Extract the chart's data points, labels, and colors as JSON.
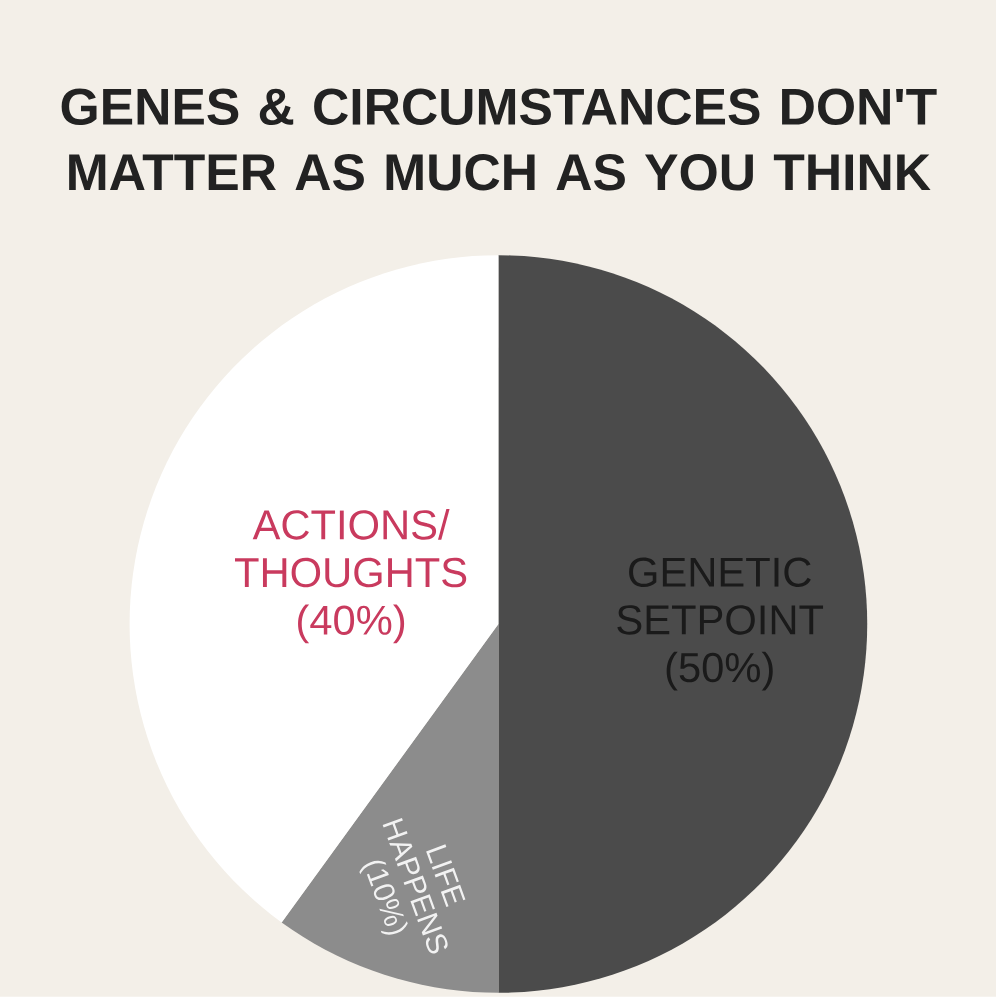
{
  "chart_data": {
    "type": "pie",
    "title": "GENES & CIRCUMSTANCES DON'T MATTER AS MUCH AS YOU THINK",
    "categories": [
      "GENETIC SETPOINT",
      "LIFE HAPPENS",
      "ACTIONS/ THOUGHTS"
    ],
    "values": [
      50,
      10,
      40
    ],
    "value_labels": [
      "(50%)",
      "(10%)",
      "(40%)"
    ],
    "colors": [
      "#4b4b4b",
      "#8c8c8c",
      "#ffffff"
    ]
  }
}
